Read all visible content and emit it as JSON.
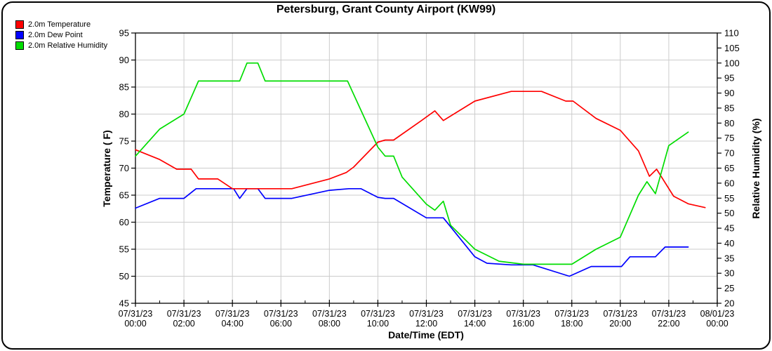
{
  "title": "Petersburg, Grant County Airport (KW99)",
  "legend": {
    "items": [
      {
        "label": "2.0m Temperature",
        "color": "#ff0000"
      },
      {
        "label": "2.0m Dew Point",
        "color": "#0000ff"
      },
      {
        "label": "2.0m Relative Humidity",
        "color": "#00dd00"
      }
    ]
  },
  "chart_data": {
    "type": "line",
    "title": "Petersburg, Grant County Airport (KW99)",
    "grid": {
      "show": true,
      "color": "#cccccc",
      "vertical_step_hours": 2,
      "horizontal_step_f": 5
    },
    "x_axis": {
      "label": "Date/Time (EDT)",
      "range_hours": [
        0,
        24
      ],
      "major_tick_hours": 2,
      "minor_tick_hours": 1,
      "tick_labels": [
        {
          "date": "07/31/23",
          "time": "00:00"
        },
        {
          "date": "07/31/23",
          "time": "02:00"
        },
        {
          "date": "07/31/23",
          "time": "04:00"
        },
        {
          "date": "07/31/23",
          "time": "06:00"
        },
        {
          "date": "07/31/23",
          "time": "08:00"
        },
        {
          "date": "07/31/23",
          "time": "10:00"
        },
        {
          "date": "07/31/23",
          "time": "12:00"
        },
        {
          "date": "07/31/23",
          "time": "14:00"
        },
        {
          "date": "07/31/23",
          "time": "16:00"
        },
        {
          "date": "07/31/23",
          "time": "18:00"
        },
        {
          "date": "07/31/23",
          "time": "20:00"
        },
        {
          "date": "07/31/23",
          "time": "22:00"
        },
        {
          "date": "08/01/23",
          "time": "00:00"
        }
      ]
    },
    "y_left": {
      "label": "Temperature ( F)",
      "min": 45,
      "max": 95,
      "tick_step": 5
    },
    "y_right": {
      "label": "Relative Humidity (%)",
      "min": 20,
      "max": 110,
      "tick_step": 5
    },
    "series": [
      {
        "name": "2.0m Dew Point",
        "axis": "left",
        "color": "#0000ff",
        "unit": "F",
        "points": [
          [
            0,
            62.6
          ],
          [
            1,
            64.4
          ],
          [
            2,
            64.4
          ],
          [
            2.5,
            66.2
          ],
          [
            4.05,
            66.2
          ],
          [
            4.3,
            64.4
          ],
          [
            4.6,
            66.2
          ],
          [
            5.05,
            66.2
          ],
          [
            5.35,
            64.4
          ],
          [
            6.45,
            64.4
          ],
          [
            8.0,
            65.9
          ],
          [
            8.8,
            66.2
          ],
          [
            9.3,
            66.2
          ],
          [
            10.0,
            64.6
          ],
          [
            10.3,
            64.4
          ],
          [
            10.65,
            64.4
          ],
          [
            12.0,
            60.8
          ],
          [
            12.7,
            60.8
          ],
          [
            14.0,
            53.6
          ],
          [
            14.5,
            52.4
          ],
          [
            15.5,
            52.1
          ],
          [
            16.4,
            52.1
          ],
          [
            17.9,
            50.0
          ],
          [
            18.8,
            51.8
          ],
          [
            20.05,
            51.8
          ],
          [
            20.4,
            53.6
          ],
          [
            21.45,
            53.6
          ],
          [
            21.85,
            55.4
          ],
          [
            22.8,
            55.4
          ]
        ]
      },
      {
        "name": "2.0m Temperature",
        "axis": "left",
        "color": "#ff0000",
        "unit": "F",
        "points": [
          [
            0,
            73.4
          ],
          [
            1,
            71.6
          ],
          [
            1.7,
            69.8
          ],
          [
            2.3,
            69.8
          ],
          [
            2.6,
            68.0
          ],
          [
            3.4,
            68.0
          ],
          [
            4.0,
            66.2
          ],
          [
            6.45,
            66.2
          ],
          [
            8.0,
            68.0
          ],
          [
            8.7,
            69.2
          ],
          [
            9.0,
            70.2
          ],
          [
            10.0,
            74.8
          ],
          [
            10.3,
            75.2
          ],
          [
            10.65,
            75.2
          ],
          [
            11.8,
            78.8
          ],
          [
            12.35,
            80.6
          ],
          [
            12.7,
            78.8
          ],
          [
            14.0,
            82.4
          ],
          [
            15.5,
            84.2
          ],
          [
            16.75,
            84.2
          ],
          [
            17.75,
            82.4
          ],
          [
            18.05,
            82.4
          ],
          [
            19.0,
            79.2
          ],
          [
            20.0,
            77.0
          ],
          [
            20.75,
            73.2
          ],
          [
            21.2,
            68.5
          ],
          [
            21.5,
            69.8
          ],
          [
            22.2,
            64.8
          ],
          [
            22.8,
            63.4
          ],
          [
            23.5,
            62.7
          ]
        ]
      },
      {
        "name": "2.0m Relative Humidity",
        "axis": "right",
        "color": "#00dd00",
        "unit": "%",
        "points": [
          [
            0,
            69
          ],
          [
            1,
            78
          ],
          [
            2,
            83
          ],
          [
            2.6,
            94
          ],
          [
            4.3,
            94
          ],
          [
            4.6,
            100
          ],
          [
            5.05,
            100
          ],
          [
            5.35,
            94
          ],
          [
            8.75,
            94
          ],
          [
            10.0,
            72
          ],
          [
            10.3,
            69
          ],
          [
            10.65,
            69
          ],
          [
            11.0,
            62
          ],
          [
            12.0,
            53
          ],
          [
            12.35,
            51
          ],
          [
            12.7,
            54
          ],
          [
            13.0,
            46
          ],
          [
            14.0,
            38
          ],
          [
            15.0,
            34
          ],
          [
            16.0,
            33
          ],
          [
            18.0,
            33
          ],
          [
            19.0,
            38
          ],
          [
            20.0,
            42
          ],
          [
            20.75,
            56
          ],
          [
            21.1,
            60.5
          ],
          [
            21.45,
            56.5
          ],
          [
            22.0,
            72.5
          ],
          [
            22.8,
            77
          ]
        ]
      }
    ]
  }
}
